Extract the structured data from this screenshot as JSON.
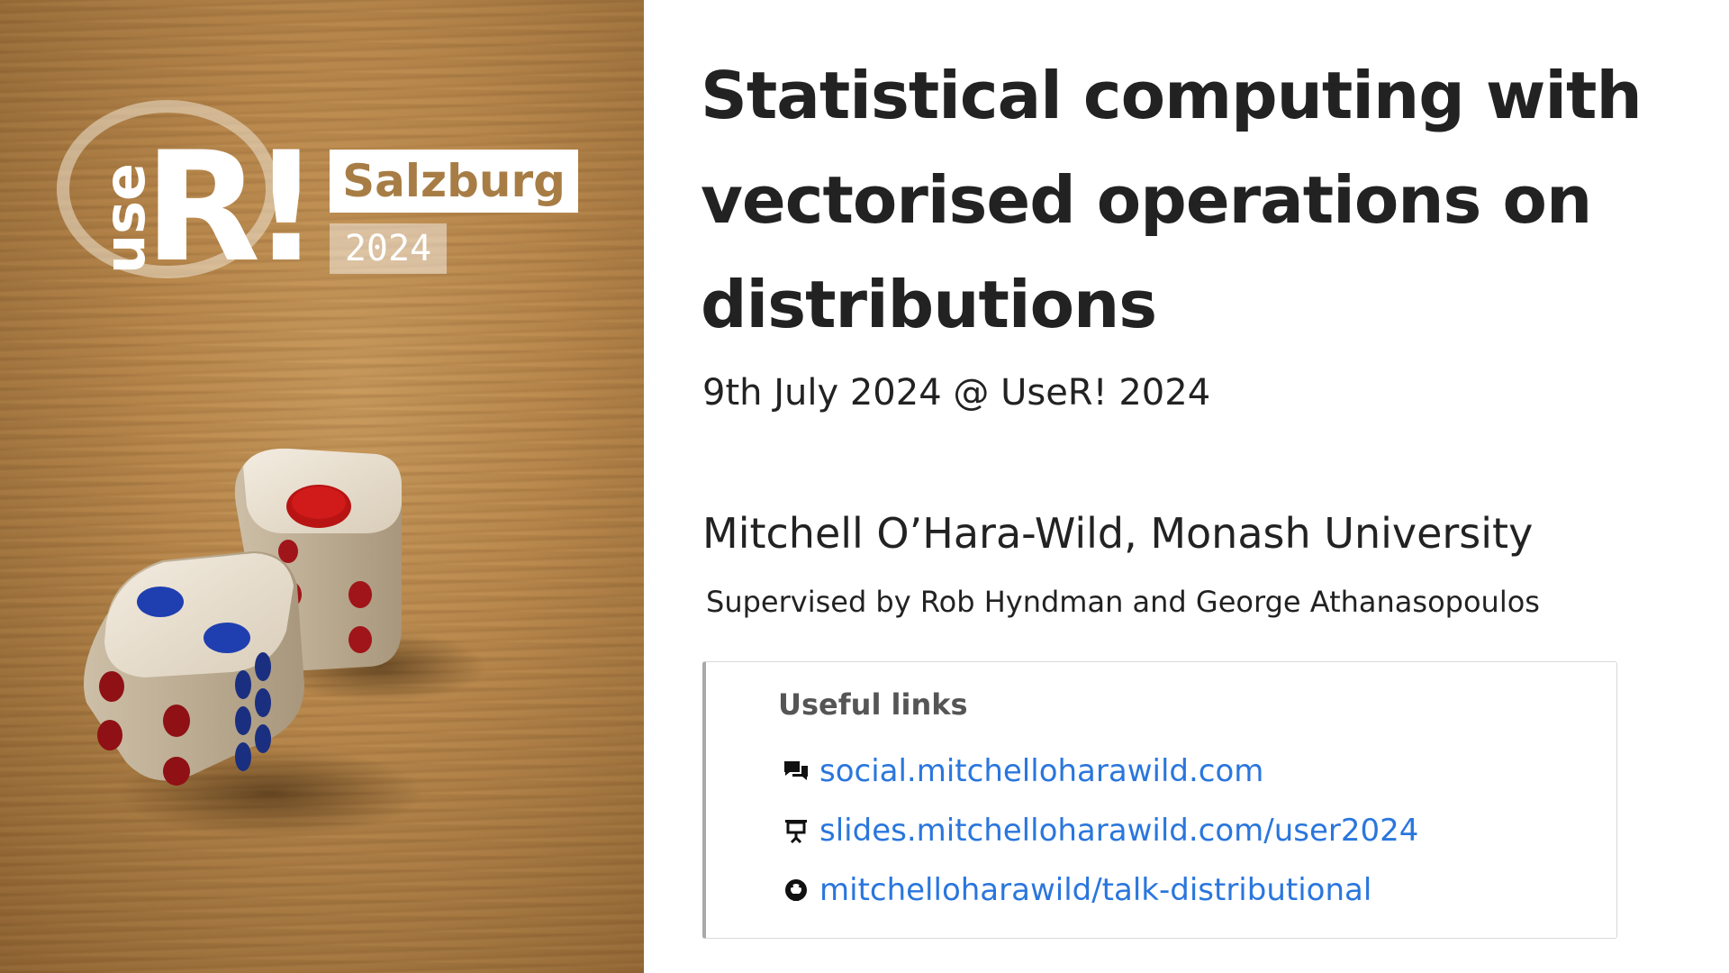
{
  "logo": {
    "wordmark": "useR!",
    "city": "Salzburg",
    "year": "2024"
  },
  "slide": {
    "title": "Statistical computing with vectorised operations on distributions",
    "subtitle": "9th July 2024 @ UseR! 2024",
    "author": "Mitchell O’Hara-Wild, Monash University",
    "supervisors": "Supervised by Rob Hyndman and George Athanasopoulos"
  },
  "links": {
    "heading": "Useful links",
    "items": [
      {
        "icon": "chat-icon",
        "text": "social.mitchelloharawild.com"
      },
      {
        "icon": "presentation-icon",
        "text": "slides.mitchelloharawild.com/user2024"
      },
      {
        "icon": "github-icon",
        "text": "mitchelloharawild/talk-distributional"
      }
    ]
  },
  "colors": {
    "link": "#2a76dd",
    "title": "#222222",
    "callout_border": "#a9a9a9",
    "wood": "#b9884c",
    "die_red_pip": "#d11a1a",
    "die_blue_pip": "#1f3fb0"
  }
}
